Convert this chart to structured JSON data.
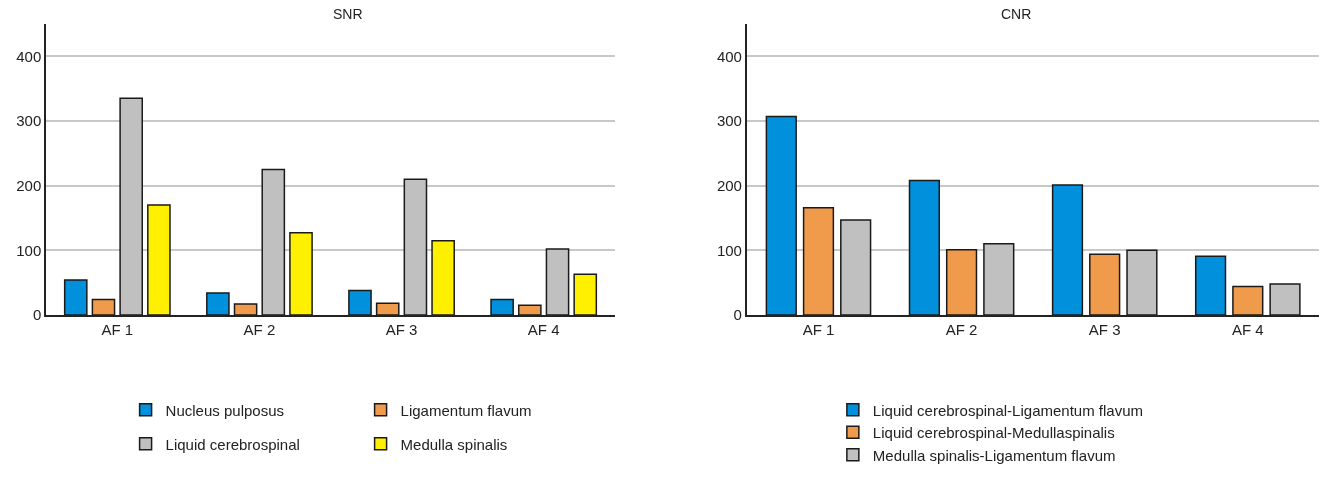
{
  "chart_data": [
    {
      "type": "bar",
      "title": "SNR",
      "categories": [
        "AF 1",
        "AF 2",
        "AF 3",
        "AF 4"
      ],
      "ylim": [
        0,
        450
      ],
      "yticks": [
        0,
        100,
        200,
        300,
        400
      ],
      "grid": "y",
      "legend": "bottom",
      "series": [
        {
          "name": "Nucleus pulposus",
          "color": "#0090dc",
          "values": [
            54,
            34,
            38,
            24
          ]
        },
        {
          "name": "Ligamentum flavum",
          "color": "#f09b4b",
          "values": [
            24,
            17,
            18,
            15
          ]
        },
        {
          "name": "Liquid cerebrospinal",
          "color": "#c0c0c0",
          "values": [
            335,
            225,
            210,
            102
          ]
        },
        {
          "name": "Medulla spinalis",
          "color": "#ffef00",
          "values": [
            170,
            127,
            115,
            63
          ]
        }
      ]
    },
    {
      "type": "bar",
      "title": "CNR",
      "categories": [
        "AF 1",
        "AF 2",
        "AF 3",
        "AF 4"
      ],
      "ylim": [
        0,
        450
      ],
      "yticks": [
        0,
        100,
        200,
        300,
        400
      ],
      "grid": "y",
      "legend": "bottom",
      "series": [
        {
          "name": "Liquid cerebrospinal-Ligamentum flavum",
          "color": "#0090dc",
          "values": [
            307,
            208,
            201,
            91
          ]
        },
        {
          "name": "Liquid cerebrospinal-Medullaspinalis",
          "color": "#f09b4b",
          "values": [
            166,
            101,
            94,
            44
          ]
        },
        {
          "name": "Medulla spinalis-Ligamentum flavum",
          "color": "#c0c0c0",
          "values": [
            147,
            110,
            100,
            48
          ]
        }
      ]
    }
  ]
}
